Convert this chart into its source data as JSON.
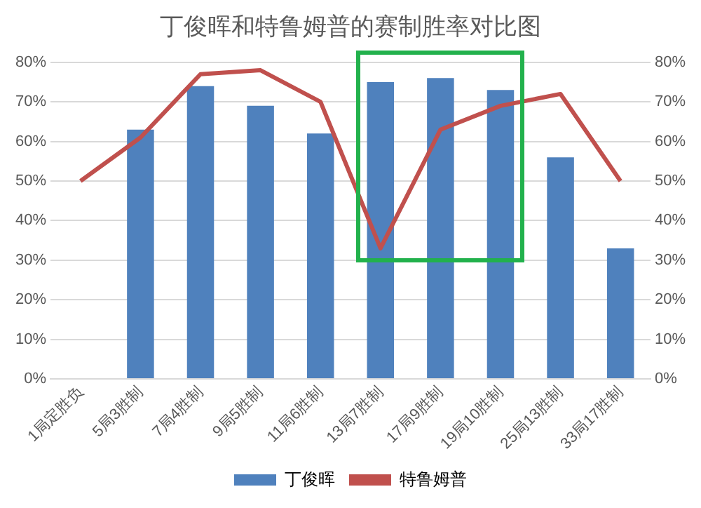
{
  "chart_data": {
    "type": "bar",
    "title": "丁俊晖和特鲁姆普的赛制胜率对比图",
    "categories": [
      "1局定胜负",
      "5局3胜制",
      "7局4胜制",
      "9局5胜制",
      "11局6胜制",
      "13局7胜制",
      "17局9胜制",
      "19局10胜制",
      "25局13胜制",
      "33局17胜制"
    ],
    "series": [
      {
        "name": "丁俊晖",
        "color": "#4f81bd",
        "values": [
          null,
          63,
          74,
          69,
          62,
          75,
          76,
          73,
          56,
          33
        ]
      },
      {
        "name": "特鲁姆普",
        "type": "line",
        "color": "#c0504d",
        "values": [
          50,
          61,
          77,
          78,
          70,
          33,
          63,
          69,
          72,
          50
        ]
      }
    ],
    "ylim": [
      0,
      80
    ],
    "yticks": [
      {
        "value": 0,
        "label": "0%"
      },
      {
        "value": 10,
        "label": "10%"
      },
      {
        "value": 20,
        "label": "20%"
      },
      {
        "value": 30,
        "label": "30%"
      },
      {
        "value": 40,
        "label": "40%"
      },
      {
        "value": 50,
        "label": "50%"
      },
      {
        "value": 60,
        "label": "60%"
      },
      {
        "value": 70,
        "label": "70%"
      },
      {
        "value": 80,
        "label": "80%"
      }
    ],
    "y2lim": [
      0,
      80
    ],
    "y2ticks": [
      {
        "value": 0,
        "label": "0%"
      },
      {
        "value": 10,
        "label": "10%"
      },
      {
        "value": 20,
        "label": "20%"
      },
      {
        "value": 30,
        "label": "30%"
      },
      {
        "value": 40,
        "label": "40%"
      },
      {
        "value": 50,
        "label": "50%"
      },
      {
        "value": 60,
        "label": "60%"
      },
      {
        "value": 70,
        "label": "70%"
      },
      {
        "value": 80,
        "label": "80%"
      }
    ],
    "grid": "y",
    "legend": "bottom",
    "marker": "none",
    "line_style": "solid"
  }
}
